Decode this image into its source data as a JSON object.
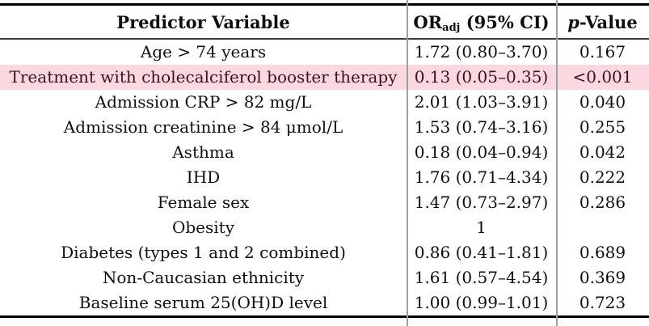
{
  "table": {
    "title_hidden": "",
    "header": {
      "predictor": "Predictor Variable",
      "or_prefix": "OR",
      "or_sub": "adj",
      "or_suffix": " (95% CI)",
      "p_italic": "p",
      "p_suffix": "-Value"
    },
    "rows": [
      {
        "predictor": "Age > 74 years",
        "or_ci": "1.72 (0.80–3.70)",
        "p": "0.167",
        "highlight": false
      },
      {
        "predictor": "Treatment with cholecalciferol booster therapy",
        "or_ci": "0.13 (0.05–0.35)",
        "p": "<0.001",
        "highlight": true
      },
      {
        "predictor": "Admission CRP > 82 mg/L",
        "or_ci": "2.01 (1.03–3.91)",
        "p": "0.040",
        "highlight": false
      },
      {
        "predictor": "Admission creatinine > 84 μmol/L",
        "or_ci": "1.53 (0.74–3.16)",
        "p": "0.255",
        "highlight": false
      },
      {
        "predictor": "Asthma",
        "or_ci": "0.18 (0.04–0.94)",
        "p": "0.042",
        "highlight": false
      },
      {
        "predictor": "IHD",
        "or_ci": "1.76 (0.71–4.34)",
        "p": "0.222",
        "highlight": false
      },
      {
        "predictor": "Female sex",
        "or_ci": "1.47 (0.73–2.97)",
        "p": "0.286",
        "highlight": false
      },
      {
        "predictor": "Obesity",
        "or_ci": "1",
        "p": "",
        "highlight": false
      },
      {
        "predictor": "Diabetes (types 1 and 2 combined)",
        "or_ci": "0.86 (0.41–1.81)",
        "p": "0.689",
        "highlight": false
      },
      {
        "predictor": "Non-Caucasian ethnicity",
        "or_ci": "1.61 (0.57–4.54)",
        "p": "0.369",
        "highlight": false
      },
      {
        "predictor": "Baseline serum 25(OH)D level",
        "or_ci": "1.00 (0.99–1.01)",
        "p": "0.723",
        "highlight": false
      }
    ],
    "colors": {
      "highlight_background": "#fbd7df",
      "highlight_text": "#3a1224",
      "rule_thick": "#000000",
      "rule_vertical": "#a0a0a0"
    }
  }
}
